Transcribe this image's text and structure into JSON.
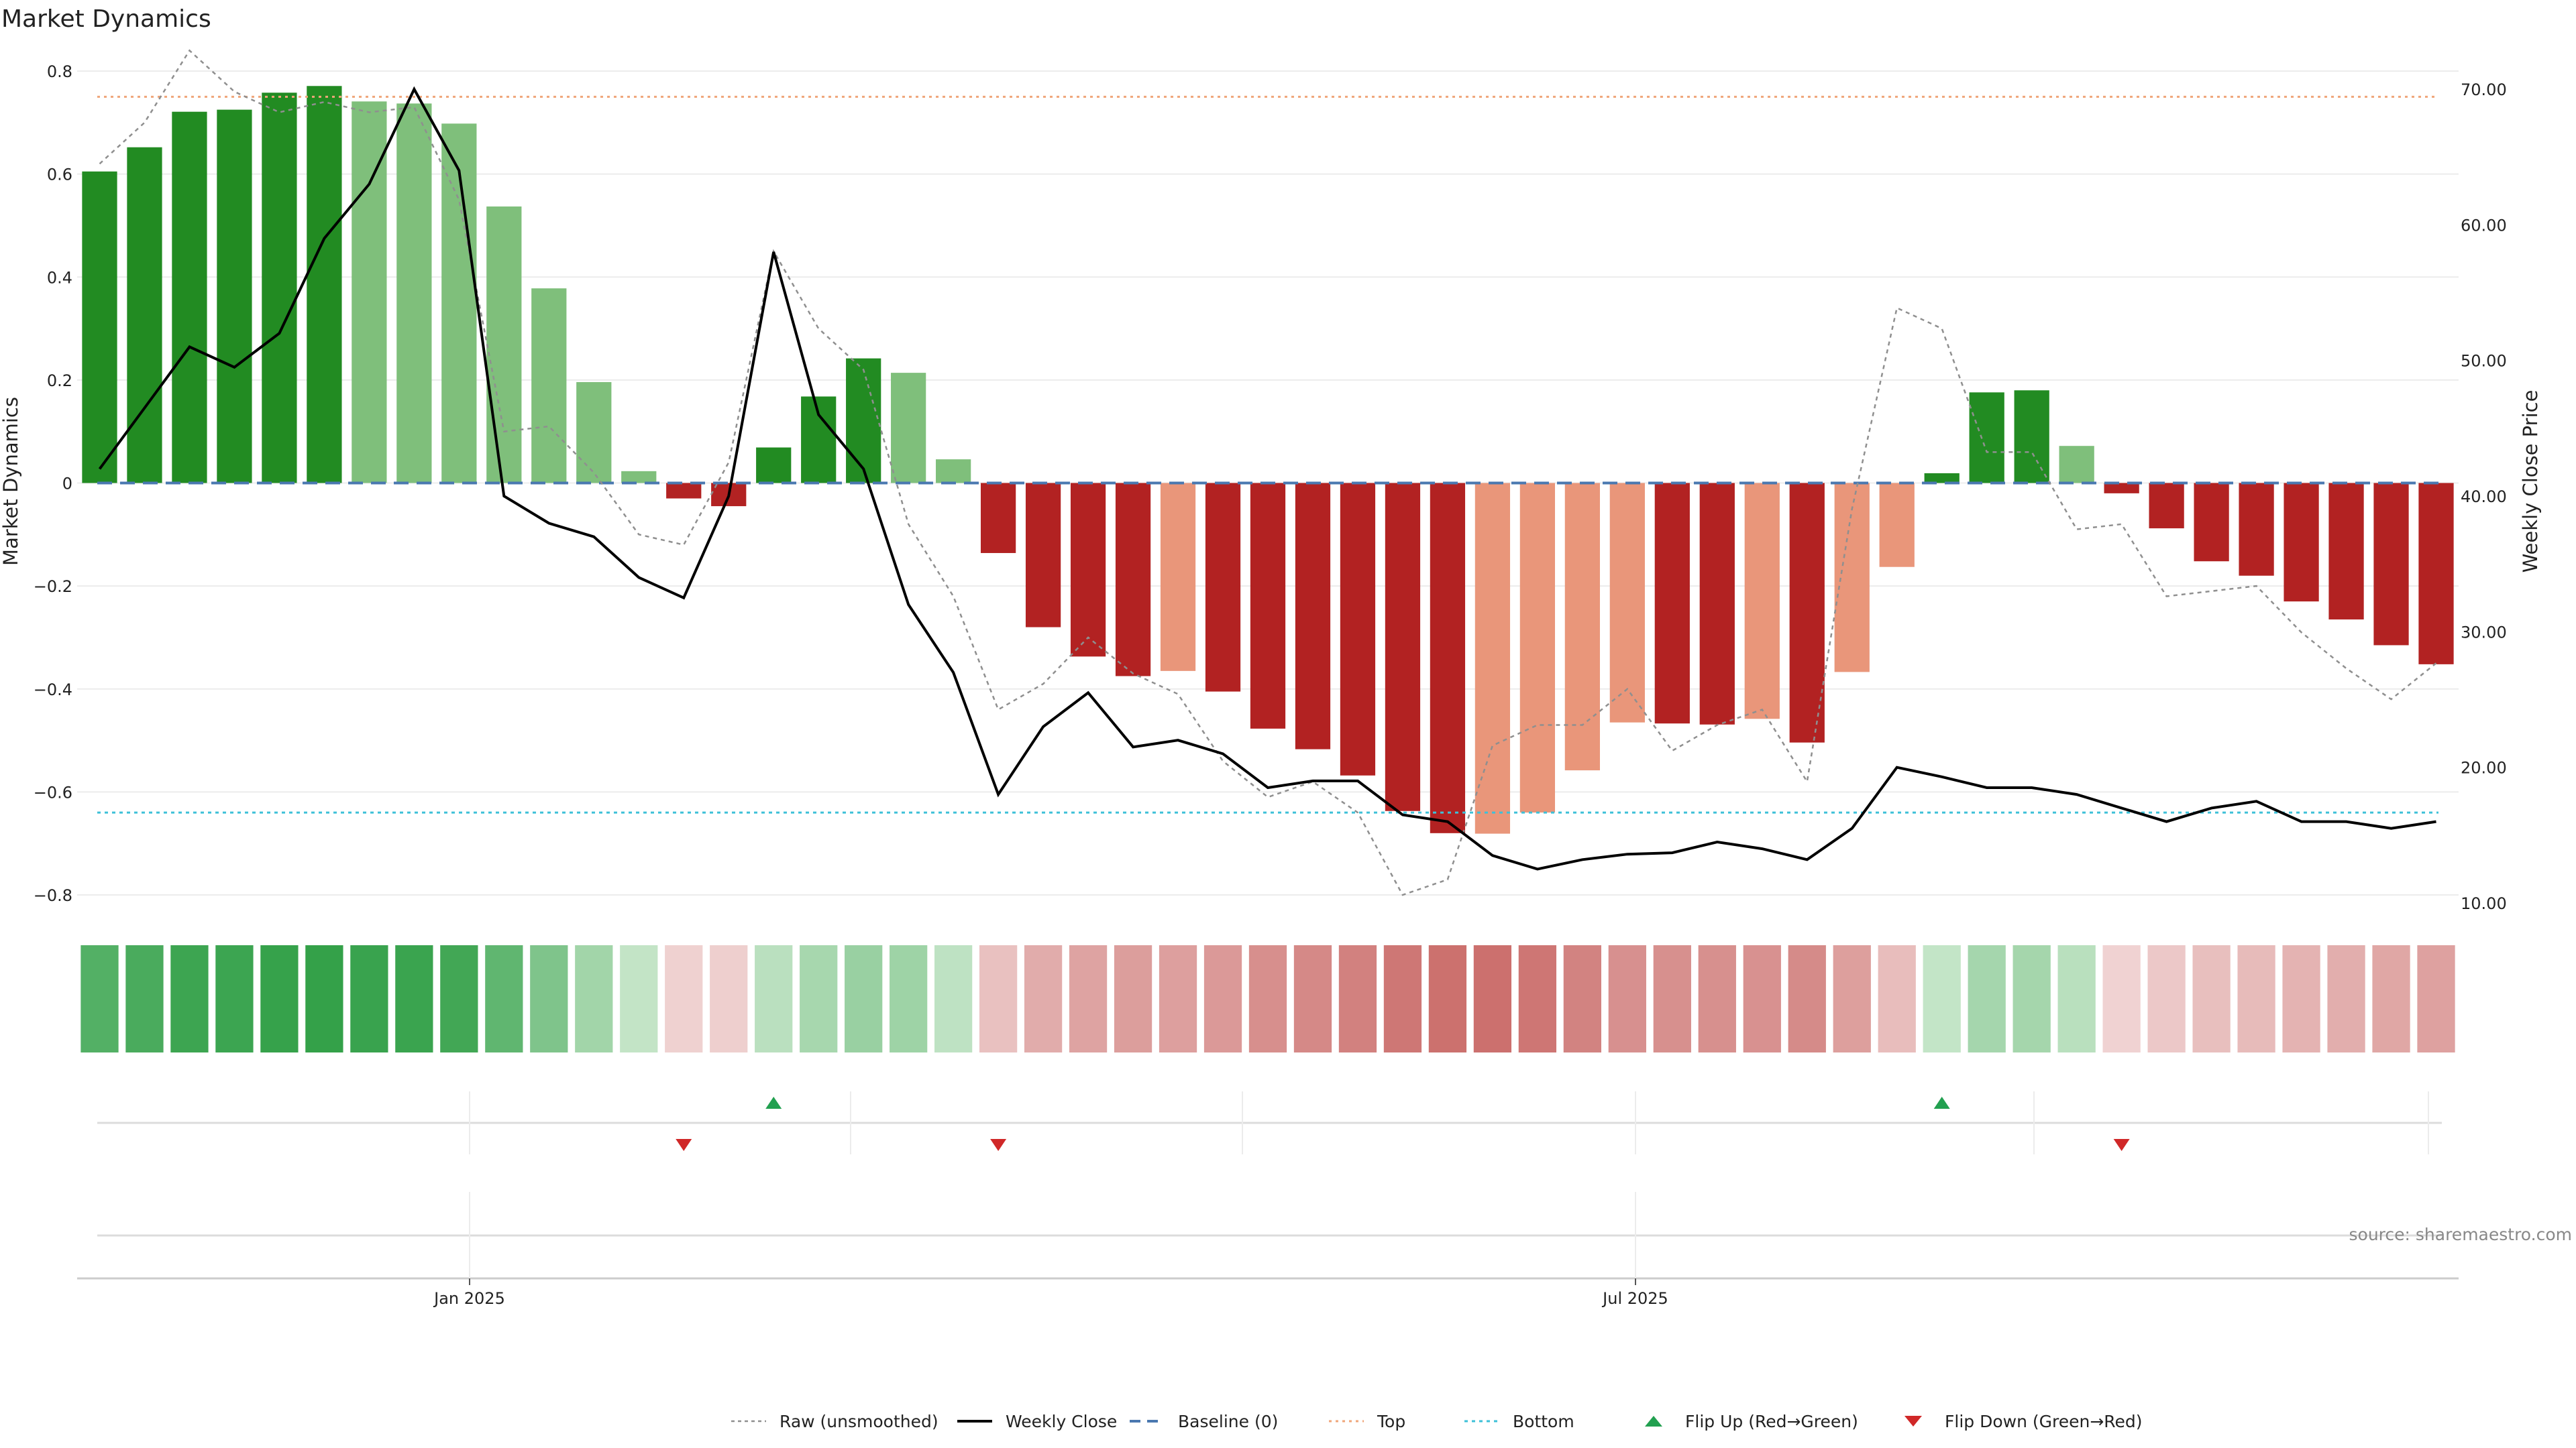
{
  "chart_data": {
    "type": "bar",
    "title": "Market Dynamics",
    "ylabel_left": "Market Dynamics",
    "ylabel_right": "Weekly Close Price",
    "ylim_left": [
      -0.8,
      0.8
    ],
    "ylim_right": [
      10,
      70
    ],
    "yticks_left": [
      "0.8",
      "0.6",
      "0.4",
      "0.2",
      "0",
      "−0.2",
      "−0.4",
      "−0.6",
      "−0.8"
    ],
    "yticks_right": [
      "70.00",
      "60.00",
      "50.00",
      "40.00",
      "30.00",
      "20.00",
      "10.00"
    ],
    "x_tick_labels": [
      "Jan 2025",
      "Jul 2025"
    ],
    "source": "source: sharemaestro.com",
    "reference_lines": {
      "baseline": 0,
      "top": 0.75,
      "bottom": -0.64
    },
    "bars": [
      0.605,
      0.652,
      0.721,
      0.725,
      0.758,
      0.771,
      0.741,
      0.737,
      0.698,
      0.537,
      0.378,
      0.196,
      0.023,
      -0.03,
      -0.045,
      0.069,
      0.168,
      0.242,
      0.214,
      0.046,
      -0.136,
      -0.28,
      -0.337,
      -0.375,
      -0.365,
      -0.405,
      -0.477,
      -0.517,
      -0.568,
      -0.637,
      -0.68,
      -0.681,
      -0.64,
      -0.558,
      -0.465,
      -0.467,
      -0.469,
      -0.458,
      -0.504,
      -0.367,
      -0.163,
      0.019,
      0.176,
      0.18,
      0.072,
      -0.02,
      -0.088,
      -0.152,
      -0.18,
      -0.23,
      -0.265,
      -0.315,
      -0.352
    ],
    "bar_shade": [
      "d",
      "d",
      "d",
      "d",
      "d",
      "d",
      "l",
      "l",
      "l",
      "l",
      "l",
      "l",
      "l",
      "d",
      "d",
      "d",
      "d",
      "d",
      "l",
      "l",
      "d",
      "d",
      "d",
      "d",
      "l",
      "d",
      "d",
      "d",
      "d",
      "d",
      "d",
      "l",
      "l",
      "l",
      "l",
      "d",
      "d",
      "l",
      "d",
      "l",
      "l",
      "d",
      "d",
      "d",
      "l",
      "d",
      "d",
      "d",
      "d",
      "d",
      "d",
      "d",
      "d"
    ],
    "raw": [
      0.62,
      0.7,
      0.84,
      0.76,
      0.72,
      0.74,
      0.72,
      0.73,
      0.55,
      0.1,
      0.11,
      0.02,
      -0.1,
      -0.12,
      0.04,
      0.45,
      0.3,
      0.22,
      -0.08,
      -0.22,
      -0.44,
      -0.39,
      -0.3,
      -0.37,
      -0.41,
      -0.54,
      -0.61,
      -0.58,
      -0.64,
      -0.8,
      -0.77,
      -0.51,
      -0.47,
      -0.47,
      -0.4,
      -0.52,
      -0.47,
      -0.44,
      -0.58,
      -0.05,
      0.34,
      0.3,
      0.06,
      0.06,
      -0.09,
      -0.08,
      -0.22,
      -0.21,
      -0.2,
      -0.29,
      -0.36,
      -0.42,
      -0.35
    ],
    "weekly_close": [
      42.0,
      46.5,
      51.0,
      49.5,
      52.0,
      59.0,
      63.0,
      70.0,
      64.0,
      40.0,
      38.0,
      37.0,
      34.0,
      32.5,
      40.0,
      58.0,
      46.0,
      42.0,
      32.0,
      27.0,
      18.0,
      23.0,
      25.5,
      21.5,
      22.0,
      21.0,
      18.5,
      19.0,
      19.0,
      16.5,
      16.0,
      13.5,
      12.5,
      13.2,
      13.6,
      13.7,
      14.5,
      14.0,
      13.2,
      15.5,
      20.0,
      19.3,
      18.5,
      18.5,
      18.0,
      17.0,
      16.0,
      17.0,
      17.5,
      16.0,
      16.0,
      15.5,
      16.0
    ],
    "flips_up": [
      15,
      41
    ],
    "flips_down": [
      13,
      20,
      45
    ],
    "colors": {
      "bull_dark": "#228b22",
      "bull_light": "#7fbf7b",
      "bear_dark": "#b22222",
      "bear_light": "#e9967a",
      "raw": "#8f8f8f",
      "close": "#000000",
      "baseline": "#4a78b0",
      "top": "#f0a67a",
      "bottom": "#3ec0d8",
      "flip_up": "#22a050",
      "flip_down": "#d02828"
    },
    "legend": [
      {
        "label": "Raw (unsmoothed)",
        "style": "raw"
      },
      {
        "label": "Weekly Close",
        "style": "close"
      },
      {
        "label": "Baseline (0)",
        "style": "baseline"
      },
      {
        "label": "Top",
        "style": "top"
      },
      {
        "label": "Bottom",
        "style": "bottom"
      },
      {
        "label": "Flip Up (Red→Green)",
        "style": "flip_up"
      },
      {
        "label": "Flip Down (Green→Red)",
        "style": "flip_down"
      }
    ]
  }
}
